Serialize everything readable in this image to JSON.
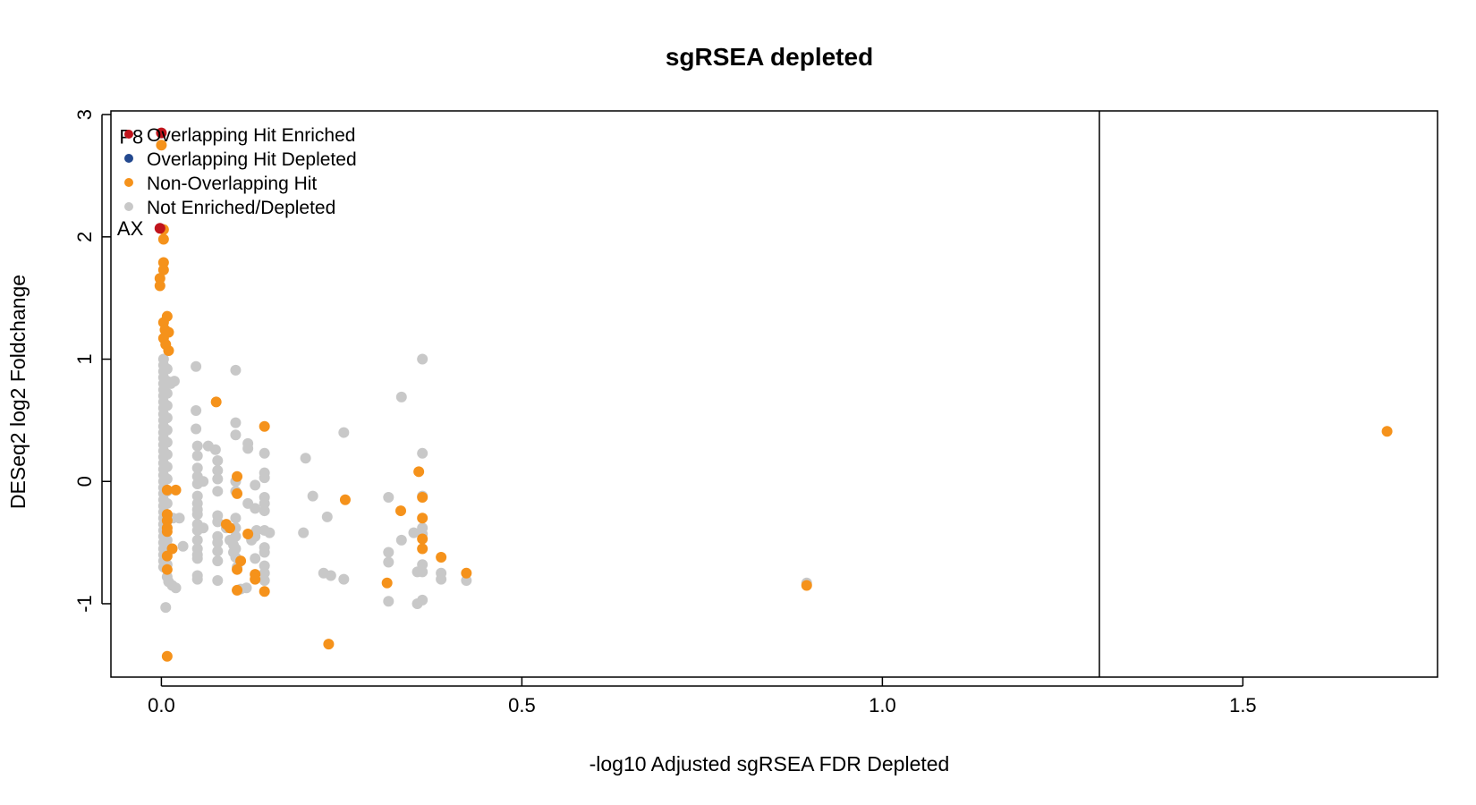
{
  "colors": {
    "overlap_enriched": "#c0141c",
    "overlap_depleted": "#23498f",
    "non_overlap": "#f5921b",
    "not_sig": "#c8c8c8",
    "axis": "#000000"
  },
  "chart_data": {
    "type": "scatter",
    "title": "sgRSEA depleted",
    "xlabel": "-log10 Adjusted sgRSEA FDR Depleted",
    "ylabel": "DESeq2 log2 Foldchange",
    "xlim": [
      -0.07,
      1.77
    ],
    "ylim": [
      -1.6,
      3.03
    ],
    "xticks": [
      0.0,
      0.5,
      1.0,
      1.5
    ],
    "xtick_labels": [
      "0.0",
      "0.5",
      "1.0",
      "1.5"
    ],
    "yticks": [
      -1,
      0,
      1,
      2,
      3
    ],
    "ytick_labels": [
      "-1",
      "0",
      "1",
      "2",
      "3"
    ],
    "vline_x": 1.301,
    "annotations": [
      {
        "text": "P8",
        "x": -0.025,
        "y": 2.82
      },
      {
        "text": "AX",
        "x": -0.025,
        "y": 2.07
      }
    ],
    "legend": {
      "position": "top-left",
      "entries": [
        {
          "label": "Overlapping Hit Enriched",
          "color_key": "overlap_enriched"
        },
        {
          "label": "Overlapping Hit Depleted",
          "color_key": "overlap_depleted"
        },
        {
          "label": "Non-Overlapping Hit",
          "color_key": "non_overlap"
        },
        {
          "label": "Not Enriched/Depleted",
          "color_key": "not_sig"
        }
      ]
    },
    "series": [
      {
        "name": "Not Enriched/Depleted",
        "color_key": "not_sig",
        "points": [
          [
            0.003,
            1.0
          ],
          [
            0.003,
            0.95
          ],
          [
            0.003,
            0.9
          ],
          [
            0.003,
            0.85
          ],
          [
            0.003,
            0.8
          ],
          [
            0.003,
            0.75
          ],
          [
            0.003,
            0.7
          ],
          [
            0.003,
            0.65
          ],
          [
            0.003,
            0.6
          ],
          [
            0.003,
            0.55
          ],
          [
            0.003,
            0.5
          ],
          [
            0.003,
            0.45
          ],
          [
            0.003,
            0.4
          ],
          [
            0.003,
            0.35
          ],
          [
            0.003,
            0.3
          ],
          [
            0.003,
            0.25
          ],
          [
            0.003,
            0.2
          ],
          [
            0.003,
            0.15
          ],
          [
            0.003,
            0.1
          ],
          [
            0.003,
            0.05
          ],
          [
            0.003,
            0.0
          ],
          [
            0.003,
            -0.05
          ],
          [
            0.003,
            -0.1
          ],
          [
            0.003,
            -0.15
          ],
          [
            0.003,
            -0.2
          ],
          [
            0.003,
            -0.25
          ],
          [
            0.003,
            -0.3
          ],
          [
            0.003,
            -0.35
          ],
          [
            0.003,
            -0.4
          ],
          [
            0.003,
            -0.45
          ],
          [
            0.003,
            -0.5
          ],
          [
            0.003,
            -0.55
          ],
          [
            0.003,
            -0.6
          ],
          [
            0.003,
            -0.65
          ],
          [
            0.003,
            -0.7
          ],
          [
            0.008,
            0.92
          ],
          [
            0.008,
            0.82
          ],
          [
            0.008,
            0.72
          ],
          [
            0.008,
            0.62
          ],
          [
            0.008,
            0.52
          ],
          [
            0.008,
            0.42
          ],
          [
            0.008,
            0.32
          ],
          [
            0.008,
            0.22
          ],
          [
            0.008,
            0.12
          ],
          [
            0.008,
            0.02
          ],
          [
            0.008,
            -0.08
          ],
          [
            0.008,
            -0.18
          ],
          [
            0.008,
            -0.28
          ],
          [
            0.008,
            -0.38
          ],
          [
            0.008,
            -0.48
          ],
          [
            0.008,
            -0.58
          ],
          [
            0.008,
            -0.68
          ],
          [
            0.008,
            -0.78
          ],
          [
            0.01,
            -0.82
          ],
          [
            0.006,
            -1.03
          ],
          [
            0.016,
            -0.3
          ],
          [
            0.013,
            0.8
          ],
          [
            0.018,
            0.82
          ],
          [
            0.025,
            -0.3
          ],
          [
            0.03,
            -0.53
          ],
          [
            0.015,
            -0.85
          ],
          [
            0.02,
            -0.87
          ],
          [
            0.048,
            0.94
          ],
          [
            0.048,
            0.58
          ],
          [
            0.048,
            0.43
          ],
          [
            0.05,
            0.29
          ],
          [
            0.05,
            0.21
          ],
          [
            0.05,
            0.11
          ],
          [
            0.05,
            0.04
          ],
          [
            0.05,
            -0.02
          ],
          [
            0.05,
            -0.12
          ],
          [
            0.05,
            -0.18
          ],
          [
            0.05,
            -0.23
          ],
          [
            0.05,
            -0.27
          ],
          [
            0.05,
            -0.35
          ],
          [
            0.05,
            -0.4
          ],
          [
            0.05,
            -0.48
          ],
          [
            0.05,
            -0.55
          ],
          [
            0.05,
            -0.6
          ],
          [
            0.05,
            -0.63
          ],
          [
            0.05,
            -0.77
          ],
          [
            0.05,
            -0.8
          ],
          [
            0.065,
            0.29
          ],
          [
            0.058,
            0.0
          ],
          [
            0.058,
            -0.38
          ],
          [
            0.075,
            0.26
          ],
          [
            0.078,
            0.17
          ],
          [
            0.078,
            0.09
          ],
          [
            0.078,
            0.02
          ],
          [
            0.078,
            -0.08
          ],
          [
            0.078,
            -0.28
          ],
          [
            0.078,
            -0.33
          ],
          [
            0.078,
            -0.45
          ],
          [
            0.078,
            -0.5
          ],
          [
            0.078,
            -0.57
          ],
          [
            0.078,
            -0.65
          ],
          [
            0.078,
            -0.81
          ],
          [
            0.09,
            -0.38
          ],
          [
            0.095,
            -0.48
          ],
          [
            0.1,
            -0.52
          ],
          [
            0.1,
            -0.58
          ],
          [
            0.103,
            0.91
          ],
          [
            0.103,
            0.48
          ],
          [
            0.103,
            0.38
          ],
          [
            0.103,
            0.0
          ],
          [
            0.103,
            -0.08
          ],
          [
            0.103,
            -0.3
          ],
          [
            0.103,
            -0.38
          ],
          [
            0.103,
            -0.45
          ],
          [
            0.103,
            -0.55
          ],
          [
            0.103,
            -0.62
          ],
          [
            0.105,
            -0.7
          ],
          [
            0.11,
            -0.88
          ],
          [
            0.12,
            0.31
          ],
          [
            0.12,
            0.27
          ],
          [
            0.12,
            -0.18
          ],
          [
            0.125,
            -0.48
          ],
          [
            0.118,
            -0.87
          ],
          [
            0.13,
            -0.03
          ],
          [
            0.13,
            -0.22
          ],
          [
            0.13,
            -0.45
          ],
          [
            0.13,
            -0.63
          ],
          [
            0.132,
            -0.4
          ],
          [
            0.143,
            0.23
          ],
          [
            0.143,
            0.07
          ],
          [
            0.143,
            0.03
          ],
          [
            0.143,
            -0.13
          ],
          [
            0.143,
            -0.18
          ],
          [
            0.143,
            -0.24
          ],
          [
            0.143,
            -0.4
          ],
          [
            0.143,
            -0.54
          ],
          [
            0.143,
            -0.58
          ],
          [
            0.143,
            -0.69
          ],
          [
            0.143,
            -0.75
          ],
          [
            0.143,
            -0.81
          ],
          [
            0.15,
            -0.42
          ],
          [
            0.2,
            0.19
          ],
          [
            0.197,
            -0.42
          ],
          [
            0.21,
            -0.12
          ],
          [
            0.225,
            -0.75
          ],
          [
            0.23,
            -0.29
          ],
          [
            0.235,
            -0.77
          ],
          [
            0.253,
            0.4
          ],
          [
            0.253,
            -0.8
          ],
          [
            0.315,
            -0.13
          ],
          [
            0.315,
            -0.58
          ],
          [
            0.315,
            -0.66
          ],
          [
            0.315,
            -0.98
          ],
          [
            0.333,
            0.69
          ],
          [
            0.333,
            -0.48
          ],
          [
            0.35,
            -0.42
          ],
          [
            0.355,
            -0.74
          ],
          [
            0.355,
            -1.0
          ],
          [
            0.362,
            1.0
          ],
          [
            0.362,
            0.23
          ],
          [
            0.362,
            -0.12
          ],
          [
            0.362,
            -0.38
          ],
          [
            0.362,
            -0.43
          ],
          [
            0.362,
            -0.68
          ],
          [
            0.362,
            -0.74
          ],
          [
            0.362,
            -0.97
          ],
          [
            0.388,
            -0.75
          ],
          [
            0.388,
            -0.8
          ],
          [
            0.423,
            -0.81
          ],
          [
            0.895,
            -0.83
          ]
        ]
      },
      {
        "name": "Non-Overlapping Hit",
        "color_key": "non_overlap",
        "points": [
          [
            0.0,
            2.75
          ],
          [
            0.003,
            2.06
          ],
          [
            0.003,
            1.98
          ],
          [
            0.003,
            1.79
          ],
          [
            0.003,
            1.73
          ],
          [
            -0.002,
            1.66
          ],
          [
            -0.002,
            1.6
          ],
          [
            0.008,
            1.35
          ],
          [
            0.003,
            1.3
          ],
          [
            0.005,
            1.24
          ],
          [
            0.01,
            1.22
          ],
          [
            0.003,
            1.17
          ],
          [
            0.006,
            1.12
          ],
          [
            0.01,
            1.07
          ],
          [
            0.008,
            -0.07
          ],
          [
            0.02,
            -0.07
          ],
          [
            0.008,
            -0.27
          ],
          [
            0.008,
            -0.32
          ],
          [
            0.008,
            -0.38
          ],
          [
            0.008,
            -0.41
          ],
          [
            0.015,
            -0.55
          ],
          [
            0.008,
            -0.61
          ],
          [
            0.008,
            -0.72
          ],
          [
            0.008,
            -1.43
          ],
          [
            0.076,
            0.65
          ],
          [
            0.09,
            -0.35
          ],
          [
            0.095,
            -0.38
          ],
          [
            0.105,
            0.04
          ],
          [
            0.105,
            -0.1
          ],
          [
            0.11,
            -0.65
          ],
          [
            0.105,
            -0.72
          ],
          [
            0.105,
            -0.89
          ],
          [
            0.12,
            -0.43
          ],
          [
            0.13,
            -0.76
          ],
          [
            0.13,
            -0.8
          ],
          [
            0.143,
            0.45
          ],
          [
            0.143,
            -0.9
          ],
          [
            0.232,
            -1.33
          ],
          [
            0.255,
            -0.15
          ],
          [
            0.313,
            -0.83
          ],
          [
            0.332,
            -0.24
          ],
          [
            0.357,
            0.08
          ],
          [
            0.362,
            -0.13
          ],
          [
            0.362,
            -0.3
          ],
          [
            0.362,
            -0.47
          ],
          [
            0.362,
            -0.55
          ],
          [
            0.388,
            -0.62
          ],
          [
            0.423,
            -0.75
          ],
          [
            0.895,
            -0.85
          ],
          [
            1.7,
            0.41
          ]
        ]
      },
      {
        "name": "Overlapping Hit Enriched",
        "color_key": "overlap_enriched",
        "points": [
          [
            0.0,
            2.85
          ],
          [
            -0.002,
            2.07
          ]
        ]
      },
      {
        "name": "Overlapping Hit Depleted",
        "color_key": "overlap_depleted",
        "points": []
      }
    ]
  }
}
